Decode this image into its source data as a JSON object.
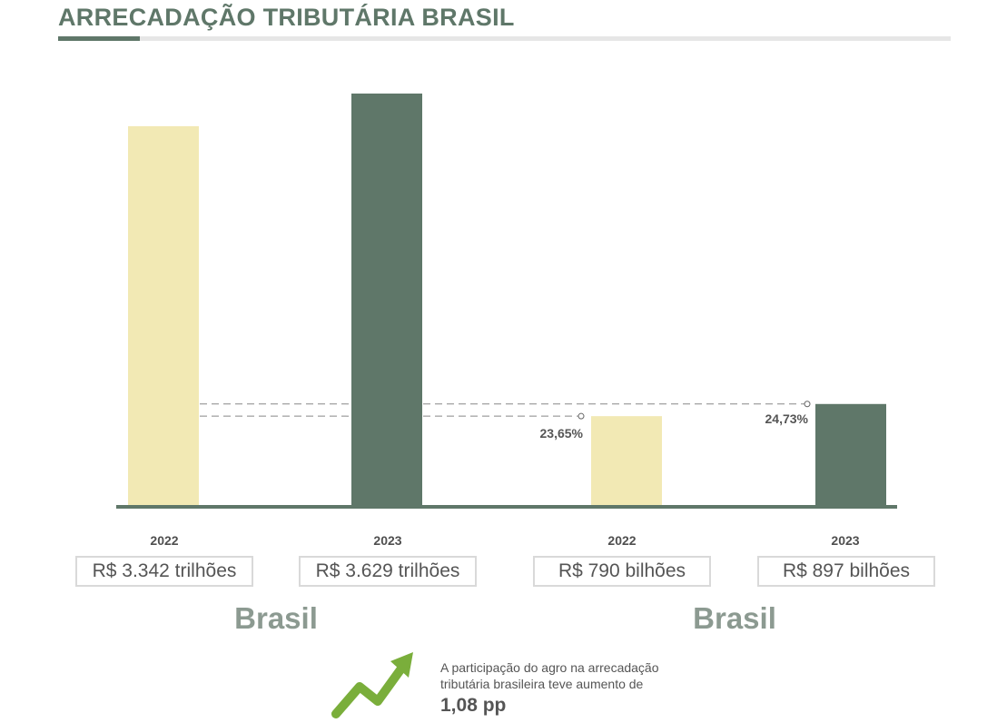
{
  "title": "ARRECADAÇÃO TRIBUTÁRIA BRASIL",
  "colors": {
    "light_bar": "#f2e9b4",
    "dark_bar": "#5f7769",
    "arrow": "#7aae3b",
    "axis": "#5f7769"
  },
  "chart_data": {
    "type": "bar",
    "unit": "R$ bilhões",
    "ylim": [
      0,
      3629
    ],
    "bars": [
      {
        "year": "2022",
        "value": 3342,
        "label": "R$ 3.342 trilhões",
        "group": "Brasil",
        "color": "#f2e9b4"
      },
      {
        "year": "2023",
        "value": 3629,
        "label": "R$ 3.629 trilhões",
        "group": "Brasil",
        "color": "#5f7769"
      },
      {
        "year": "2022",
        "value": 790,
        "label": "R$ 790 bilhões",
        "group": "Brasil",
        "color": "#f2e9b4",
        "share": "23,65%"
      },
      {
        "year": "2023",
        "value": 897,
        "label": "R$ 897 bilhões",
        "group": "Brasil",
        "color": "#5f7769",
        "share": "24,73%"
      }
    ],
    "groups": [
      "Brasil",
      "Brasil"
    ]
  },
  "note": {
    "text": "A participação do agro na arrecadação tributária brasileira teve aumento de",
    "value": "1,08 pp"
  }
}
